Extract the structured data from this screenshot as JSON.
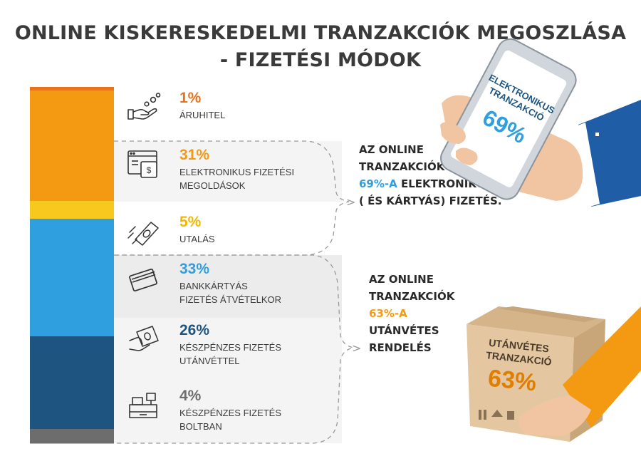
{
  "title_line1": "ONLINE KISKERESKEDELMI TRANZAKCIÓK MEGOSZLÁSA",
  "title_line2": "- FIZETÉSI MÓDOK",
  "colors": {
    "aruhitel": "#e8731a",
    "elektronikus": "#f39a12",
    "utalas": "#f7c81e",
    "bankkartya": "#2f9fe0",
    "keszpenz_utanvet": "#1d5580",
    "keszpenz_bolt": "#6d6d6d",
    "band_grey": "#ececec"
  },
  "chart_data": {
    "type": "bar",
    "orientation": "stacked-vertical",
    "title": "ONLINE KISKERESKEDELMI TRANZAKCIÓK MEGOSZLÁSA - FIZETÉSI MÓDOK",
    "categories": [
      "ÁRUHITEL",
      "ELEKTRONIKUS FIZETÉSI MEGOLDÁSOK",
      "UTALÁS",
      "BANKKÁRTYÁS FIZETÉS ÁTVÉTELKOR",
      "KÉSZPÉNZES FIZETÉS UTÁNVÉTTEL",
      "KÉSZPÉNZES FIZETÉS BOLTBAN"
    ],
    "values": [
      1,
      31,
      5,
      33,
      26,
      4
    ],
    "unit": "%"
  },
  "items": [
    {
      "pct": "1%",
      "label_line1": "ÁRUHITEL",
      "label_line2": "",
      "icon": "hand-coins-icon"
    },
    {
      "pct": "31%",
      "label_line1": "ELEKTRONIKUS FIZETÉSI",
      "label_line2": "MEGOLDÁSOK",
      "icon": "browser-payment-icon"
    },
    {
      "pct": "5%",
      "label_line1": "UTALÁS",
      "label_line2": "",
      "icon": "flying-money-icon"
    },
    {
      "pct": "33%",
      "label_line1": "BANKKÁRTYÁS",
      "label_line2": "FIZETÉS ÁTVÉTELKOR",
      "icon": "bank-card-icon"
    },
    {
      "pct": "26%",
      "label_line1": "KÉSZPÉNZES FIZETÉS",
      "label_line2": "UTÁNVÉTTEL",
      "icon": "cash-hand-icon"
    },
    {
      "pct": "4%",
      "label_line1": "KÉSZPÉNZES FIZETÉS",
      "label_line2": "BOLTBAN",
      "icon": "cash-register-icon"
    }
  ],
  "note_electronic": {
    "line1": "AZ ONLINE",
    "line2": "TRANZAKCIÓK",
    "highlight": "69%-A",
    "line3_rest": " ELEKTRONIKUS",
    "line4": "( ÉS KÁRTYÁS) FIZETÉS."
  },
  "note_cod": {
    "line1": "AZ ONLINE",
    "line2": "TRANZAKCIÓK",
    "highlight": "63%-A",
    "line4": "UTÁNVÉTES",
    "line5": "RENDELÉS"
  },
  "phone": {
    "caption_line1": "ELEKTRONIKUS",
    "caption_line2": "TRANZAKCIÓ",
    "value": "69%"
  },
  "box": {
    "caption_line1": "UTÁNVÉTES",
    "caption_line2": "TRANZAKCIÓ",
    "value": "63%"
  }
}
